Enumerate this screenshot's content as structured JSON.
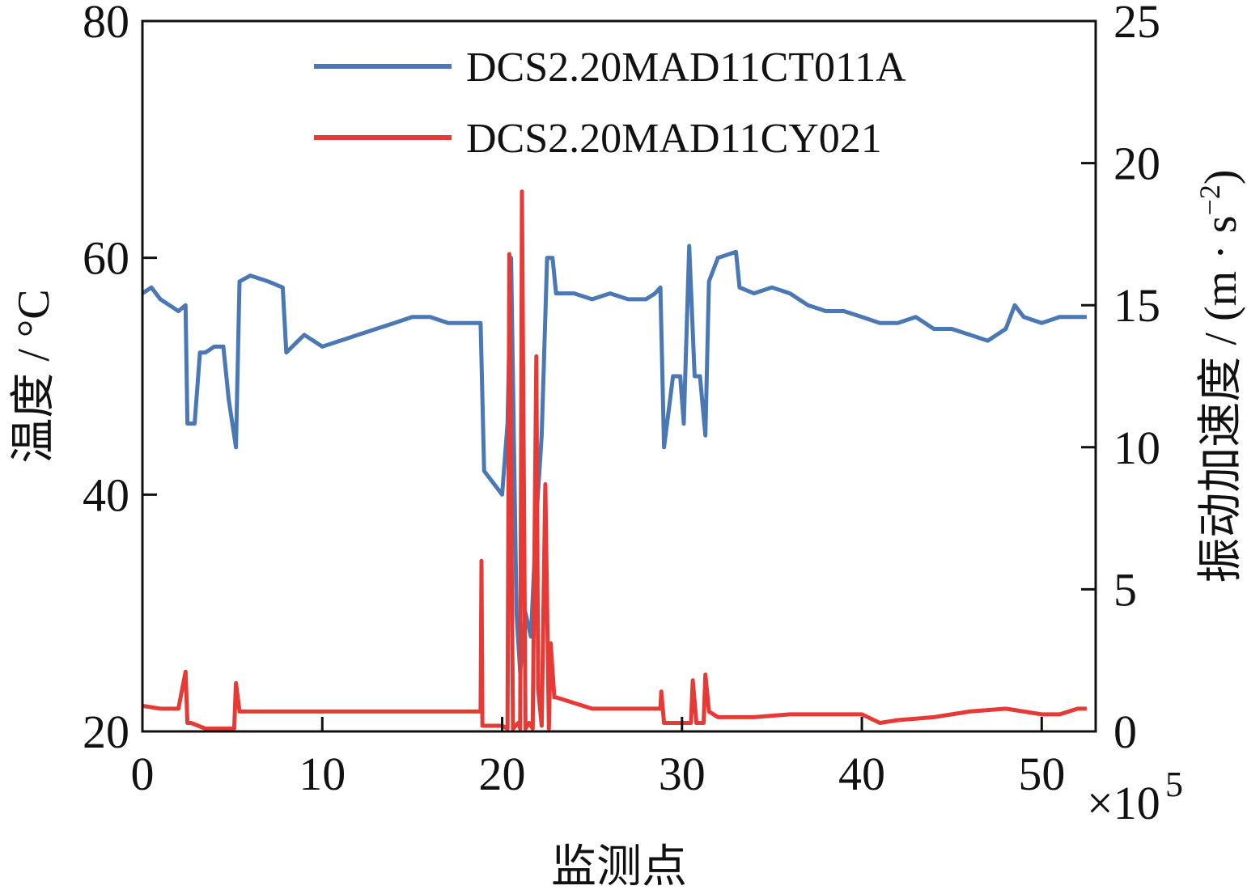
{
  "chart_data": {
    "type": "line",
    "xlabel": "监测点",
    "x_exponent_label": "×10",
    "x_exponent_power": "5",
    "xlim": [
      0,
      53
    ],
    "xticks": [
      0,
      10,
      20,
      30,
      40,
      50
    ],
    "ylabel_left": "温度 / °C",
    "ylim_left": [
      20,
      80
    ],
    "yticks_left": [
      20,
      40,
      60,
      80
    ],
    "ylabel_right_main": "振动加速度 / (m · s",
    "ylabel_right_sup": "−2",
    "ylabel_right_end": ")",
    "ylim_right": [
      0,
      25
    ],
    "yticks_right": [
      0,
      5,
      10,
      15,
      20,
      25
    ],
    "grid": false,
    "legend_position": "top-right",
    "series": [
      {
        "name": "DCS2.20MAD11CT011A",
        "axis": "left",
        "color": "#4a78b5",
        "x": [
          0,
          0.5,
          1.0,
          1.5,
          2.0,
          2.4,
          2.5,
          2.9,
          3.2,
          3.5,
          4.0,
          4.5,
          4.8,
          5.2,
          5.4,
          6.0,
          7.0,
          7.8,
          8.0,
          9.0,
          10.0,
          11.0,
          12.0,
          13.0,
          14.0,
          15.0,
          16.0,
          17.0,
          18.0,
          18.8,
          19.0,
          19.5,
          20.0,
          20.3,
          20.5,
          20.8,
          21.0,
          21.3,
          21.6,
          21.9,
          22.2,
          22.5,
          22.8,
          23.0,
          24.0,
          25.0,
          26.0,
          27.0,
          28.0,
          28.5,
          28.8,
          29.0,
          29.5,
          29.9,
          30.1,
          30.4,
          30.7,
          31.0,
          31.3,
          31.5,
          32.0,
          33.0,
          33.2,
          34.0,
          35.0,
          36.0,
          37.0,
          38.0,
          39.0,
          40.0,
          41.0,
          42.0,
          43.0,
          44.0,
          45.0,
          46.0,
          47.0,
          48.0,
          48.5,
          49.0,
          50.0,
          51.0,
          52.0,
          52.5
        ],
        "y": [
          57,
          57.5,
          56.5,
          56,
          55.5,
          56,
          46,
          46,
          52,
          52,
          52.5,
          52.5,
          48,
          44,
          58,
          58.5,
          58,
          57.5,
          52,
          53.5,
          52.5,
          53,
          53.5,
          54,
          54.5,
          55,
          55,
          54.5,
          54.5,
          54.5,
          42,
          41,
          40,
          46,
          60,
          30,
          25,
          30,
          28,
          38,
          45,
          60,
          60,
          57,
          57,
          56.5,
          57,
          56.5,
          56.5,
          57,
          57.5,
          44,
          50,
          50,
          46,
          61,
          50,
          50,
          45,
          58,
          60,
          60.5,
          57.5,
          57,
          57.5,
          57,
          56,
          55.5,
          55.5,
          55,
          54.5,
          54.5,
          55,
          54,
          54,
          53.5,
          53,
          54,
          56,
          55,
          54.5,
          55,
          55,
          55
        ]
      },
      {
        "name": "DCS2.20MAD11CY021",
        "axis": "right",
        "color": "#e53a35",
        "x": [
          0,
          1.0,
          2.0,
          2.4,
          2.5,
          2.7,
          3.5,
          4.0,
          4.5,
          5.1,
          5.2,
          5.4,
          6.0,
          8.0,
          10.0,
          12.0,
          14.0,
          16.0,
          18.0,
          18.8,
          18.85,
          18.9,
          19.0,
          20.0,
          20.3,
          20.4,
          20.6,
          20.9,
          21.0,
          21.1,
          21.3,
          21.5,
          21.7,
          21.9,
          22.0,
          22.2,
          22.4,
          22.6,
          22.7,
          22.9,
          23.0,
          24.0,
          25.0,
          26.0,
          27.0,
          28.0,
          28.8,
          28.85,
          29.0,
          30.0,
          30.5,
          30.6,
          30.8,
          31.2,
          31.3,
          31.5,
          32.0,
          34.0,
          36.0,
          38.0,
          40.0,
          41.0,
          42.0,
          44.0,
          46.0,
          48.0,
          50.0,
          51.0,
          52.0,
          52.5
        ],
        "y": [
          0.9,
          0.8,
          0.8,
          2.1,
          0.3,
          0.3,
          0.1,
          0.1,
          0.1,
          0.1,
          1.7,
          0.7,
          0.7,
          0.7,
          0.7,
          0.7,
          0.7,
          0.7,
          0.7,
          0.7,
          6.0,
          0.2,
          0.2,
          0.2,
          0.1,
          16.8,
          0.1,
          0.3,
          0.1,
          19.0,
          0.1,
          0.3,
          0.1,
          13.2,
          1.5,
          0.2,
          8.7,
          0.1,
          3.1,
          1.2,
          1.2,
          1.0,
          0.8,
          0.8,
          0.8,
          0.8,
          0.8,
          1.4,
          0.3,
          0.3,
          0.3,
          1.8,
          0.3,
          0.3,
          2.0,
          0.7,
          0.5,
          0.5,
          0.6,
          0.6,
          0.6,
          0.3,
          0.4,
          0.5,
          0.7,
          0.8,
          0.6,
          0.6,
          0.8,
          0.8
        ]
      }
    ]
  }
}
